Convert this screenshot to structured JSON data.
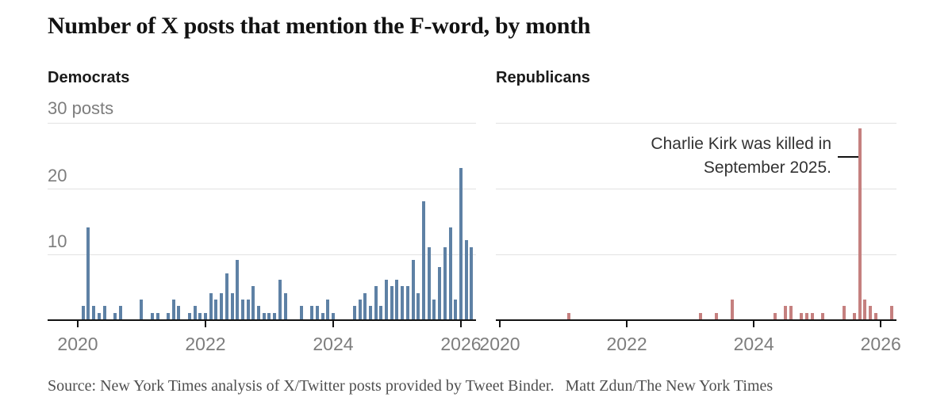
{
  "title": "Number of X posts that mention the F-word, by month",
  "panels": [
    {
      "label": "Democrats"
    },
    {
      "label": "Republicans"
    }
  ],
  "y_axis": {
    "top_label": "30 posts",
    "mid_label": "20",
    "low_label": "10"
  },
  "annotation": {
    "line1": "Charlie Kirk was killed in",
    "line2": "September 2025."
  },
  "source": {
    "prefix": "Source: New York Times analysis of X/Twitter posts provided by Tweet Binder.",
    "byline": "Matt Zdun/The New York Times"
  },
  "colors": {
    "democrat_bar": "#5e81a5",
    "republican_bar": "#c5807f",
    "grid": "#e2e2e2",
    "axis": "#121212",
    "muted_text": "#7d7d7d"
  },
  "chart_data": {
    "type": "bar",
    "unit": "posts",
    "title": "Number of X posts that mention the F-word, by month",
    "y_ticks": [
      10,
      20,
      30
    ],
    "y_max_gridline": 30,
    "x_tick_years": [
      2020,
      2022,
      2024,
      2026
    ],
    "x_domain": [
      "2019-07",
      "2026-04"
    ],
    "grid": true,
    "series": [
      {
        "name": "Democrats",
        "color": "#5e81a5",
        "points": [
          [
            "2020-02",
            2
          ],
          [
            "2020-03",
            14
          ],
          [
            "2020-04",
            2
          ],
          [
            "2020-05",
            1
          ],
          [
            "2020-06",
            2
          ],
          [
            "2020-08",
            1
          ],
          [
            "2020-09",
            2
          ],
          [
            "2021-01",
            3
          ],
          [
            "2021-03",
            1
          ],
          [
            "2021-04",
            1
          ],
          [
            "2021-06",
            1
          ],
          [
            "2021-07",
            3
          ],
          [
            "2021-08",
            2
          ],
          [
            "2021-10",
            1
          ],
          [
            "2021-11",
            2
          ],
          [
            "2021-12",
            1
          ],
          [
            "2022-01",
            1
          ],
          [
            "2022-02",
            4
          ],
          [
            "2022-03",
            3
          ],
          [
            "2022-04",
            4
          ],
          [
            "2022-05",
            7
          ],
          [
            "2022-06",
            4
          ],
          [
            "2022-07",
            9
          ],
          [
            "2022-08",
            3
          ],
          [
            "2022-09",
            3
          ],
          [
            "2022-10",
            5
          ],
          [
            "2022-11",
            2
          ],
          [
            "2022-12",
            1
          ],
          [
            "2023-01",
            1
          ],
          [
            "2023-02",
            1
          ],
          [
            "2023-03",
            6
          ],
          [
            "2023-04",
            4
          ],
          [
            "2023-07",
            2
          ],
          [
            "2023-09",
            2
          ],
          [
            "2023-10",
            2
          ],
          [
            "2023-11",
            1
          ],
          [
            "2023-12",
            3
          ],
          [
            "2024-01",
            1
          ],
          [
            "2024-05",
            2
          ],
          [
            "2024-06",
            3
          ],
          [
            "2024-07",
            4
          ],
          [
            "2024-08",
            2
          ],
          [
            "2024-09",
            5
          ],
          [
            "2024-10",
            2
          ],
          [
            "2024-11",
            6
          ],
          [
            "2024-12",
            5
          ],
          [
            "2025-01",
            6
          ],
          [
            "2025-02",
            5
          ],
          [
            "2025-03",
            5
          ],
          [
            "2025-04",
            9
          ],
          [
            "2025-05",
            4
          ],
          [
            "2025-06",
            18
          ],
          [
            "2025-07",
            11
          ],
          [
            "2025-08",
            3
          ],
          [
            "2025-09",
            8
          ],
          [
            "2025-10",
            11
          ],
          [
            "2025-11",
            14
          ],
          [
            "2025-12",
            3
          ],
          [
            "2026-01",
            23
          ],
          [
            "2026-02",
            12
          ],
          [
            "2026-03",
            11
          ]
        ]
      },
      {
        "name": "Republicans",
        "color": "#c5807f",
        "points": [
          [
            "2021-02",
            1
          ],
          [
            "2023-03",
            1
          ],
          [
            "2023-06",
            1
          ],
          [
            "2023-09",
            3
          ],
          [
            "2024-05",
            1
          ],
          [
            "2024-07",
            2
          ],
          [
            "2024-08",
            2
          ],
          [
            "2024-10",
            1
          ],
          [
            "2024-11",
            1
          ],
          [
            "2024-12",
            1
          ],
          [
            "2025-02",
            1
          ],
          [
            "2025-06",
            2
          ],
          [
            "2025-08",
            1
          ],
          [
            "2025-09",
            29
          ],
          [
            "2025-10",
            3
          ],
          [
            "2025-11",
            2
          ],
          [
            "2025-12",
            1
          ],
          [
            "2026-03",
            2
          ]
        ]
      }
    ],
    "annotation": {
      "text": "Charlie Kirk was killed in September 2025.",
      "target_series": "Republicans",
      "target_month": "2025-09",
      "target_value": 29
    }
  }
}
